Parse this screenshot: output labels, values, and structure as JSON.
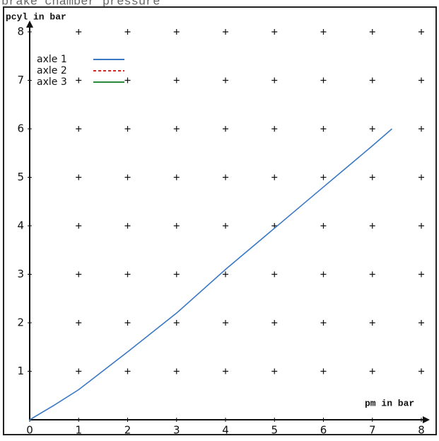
{
  "chart_data": {
    "type": "line",
    "title": "brake chamber pressure",
    "ylabel": "pcyl in bar",
    "xlabel": "pm in bar",
    "x": [
      0,
      0.5,
      1,
      2,
      3,
      4,
      5,
      6,
      7,
      7.4
    ],
    "series": [
      {
        "name": "axle 1",
        "color": "#3a78c4",
        "dash": "none",
        "values": [
          0,
          0.3,
          0.62,
          1.4,
          2.2,
          3.1,
          3.95,
          4.8,
          5.65,
          6.0
        ]
      },
      {
        "name": "axle 2",
        "color": "#d62728",
        "dash": "4,3",
        "values": [
          null,
          null,
          null,
          null,
          null,
          null,
          null,
          null,
          null,
          null
        ]
      },
      {
        "name": "axle 3",
        "color": "#2a8a3a",
        "dash": "none",
        "values": [
          null,
          null,
          null,
          null,
          null,
          null,
          null,
          null,
          null,
          null
        ]
      }
    ],
    "xlim": [
      0,
      8
    ],
    "ylim": [
      0,
      8
    ],
    "xticks": [
      0,
      1,
      2,
      3,
      4,
      5,
      6,
      7,
      8
    ],
    "yticks": [
      1,
      2,
      3,
      4,
      5,
      6,
      7,
      8
    ],
    "grid": true
  }
}
